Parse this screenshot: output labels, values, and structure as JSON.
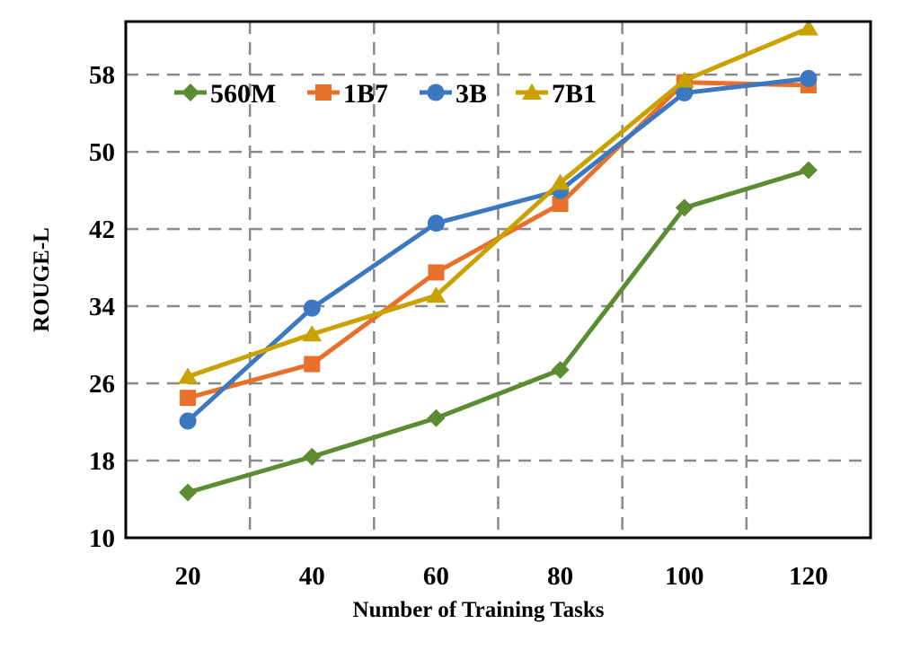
{
  "chart_data": {
    "type": "line",
    "xlabel": "Number of Training Tasks",
    "ylabel": "ROUGE-L",
    "x": [
      20,
      40,
      60,
      80,
      100,
      120
    ],
    "x_ticks": [
      "20",
      "40",
      "60",
      "80",
      "100",
      "120"
    ],
    "y_ticks": [
      "10",
      "18",
      "26",
      "34",
      "42",
      "50",
      "58"
    ],
    "ylim": [
      10,
      63.5
    ],
    "grid": true,
    "legend_position": "top-left",
    "series": [
      {
        "name": "560M",
        "color": "#5b8c32",
        "marker": "diamond",
        "values": [
          14.7,
          18.4,
          22.4,
          27.4,
          44.2,
          48.1
        ]
      },
      {
        "name": "1B7",
        "color": "#e8702a",
        "marker": "square",
        "values": [
          24.5,
          28.0,
          37.5,
          44.6,
          57.2,
          56.9
        ]
      },
      {
        "name": "3B",
        "color": "#3a78c2",
        "marker": "circle",
        "values": [
          22.1,
          33.8,
          42.6,
          46.0,
          56.1,
          57.6
        ]
      },
      {
        "name": "7B1",
        "color": "#c9a200",
        "marker": "triangle",
        "values": [
          26.7,
          31.1,
          35.1,
          46.8,
          57.4,
          62.8
        ]
      }
    ]
  }
}
